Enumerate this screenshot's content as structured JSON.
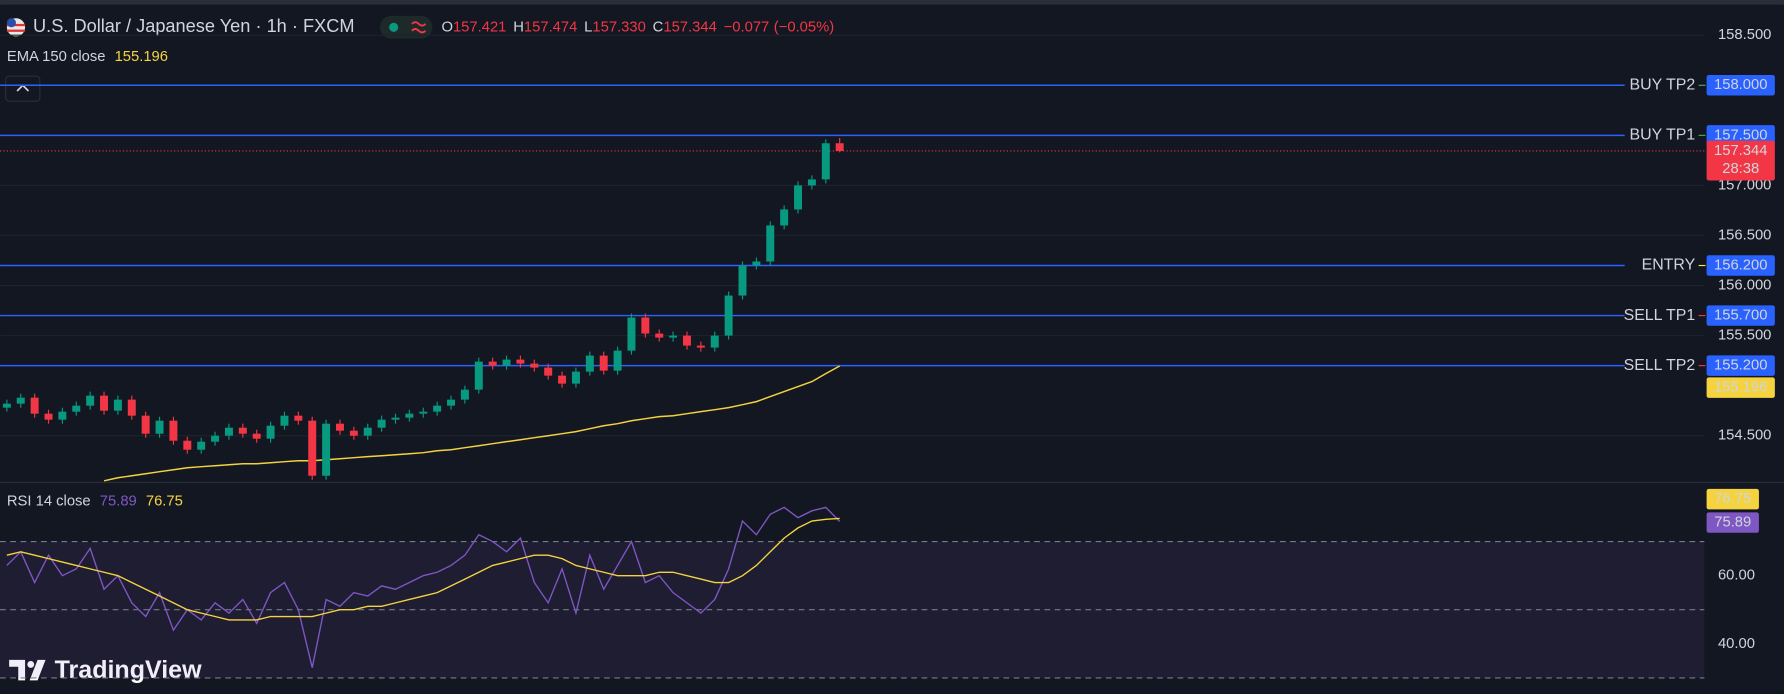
{
  "chart_data": [
    {
      "type": "candlestick",
      "title": "U.S. Dollar / Japanese Yen · 1h · FXCM",
      "ohlc_legend": [
        {
          "letter": "O",
          "value": 157.421,
          "label": "157.421"
        },
        {
          "letter": "H",
          "value": 157.474,
          "label": "157.474"
        },
        {
          "letter": "L",
          "value": 157.33,
          "label": "157.330"
        },
        {
          "letter": "C",
          "value": 157.344,
          "label": "157.344"
        }
      ],
      "change": {
        "value": -0.077,
        "label": "−0.077"
      },
      "change_percent": {
        "value": -0.05,
        "label": "(−0.05%)"
      },
      "open": [
        154.78,
        154.82,
        154.88,
        154.72,
        154.66,
        154.74,
        154.8,
        154.9,
        154.75,
        154.86,
        154.7,
        154.52,
        154.65,
        154.45,
        154.36,
        154.44,
        154.5,
        154.58,
        154.52,
        154.47,
        154.6,
        154.7,
        154.65,
        154.1,
        154.62,
        154.55,
        154.5,
        154.58,
        154.66,
        154.68,
        154.72,
        154.74,
        154.8,
        154.86,
        154.96,
        155.24,
        155.2,
        155.26,
        155.22,
        155.18,
        155.1,
        155.02,
        155.14,
        155.3,
        155.15,
        155.35,
        155.68,
        155.52,
        155.48,
        155.5,
        155.4,
        155.38,
        155.5,
        155.9,
        156.2,
        156.24,
        156.6,
        156.76,
        157.0,
        157.06,
        157.421
      ],
      "high": [
        154.86,
        154.92,
        154.92,
        154.76,
        154.78,
        154.84,
        154.94,
        154.94,
        154.9,
        154.9,
        154.74,
        154.69,
        154.69,
        154.49,
        154.48,
        154.54,
        154.62,
        154.62,
        154.56,
        154.64,
        154.74,
        154.74,
        154.69,
        154.66,
        154.66,
        154.59,
        154.62,
        154.7,
        154.72,
        154.76,
        154.78,
        154.84,
        154.9,
        155.0,
        155.28,
        155.28,
        155.3,
        155.3,
        155.26,
        155.22,
        155.14,
        155.18,
        155.34,
        155.34,
        155.39,
        155.72,
        155.72,
        155.56,
        155.54,
        155.54,
        155.44,
        155.54,
        155.94,
        156.24,
        156.28,
        156.64,
        156.8,
        157.04,
        157.1,
        157.46,
        157.474
      ],
      "low": [
        154.74,
        154.78,
        154.68,
        154.62,
        154.62,
        154.7,
        154.76,
        154.71,
        154.71,
        154.66,
        154.48,
        154.48,
        154.41,
        154.32,
        154.32,
        154.4,
        154.46,
        154.48,
        154.43,
        154.43,
        154.56,
        154.61,
        154.06,
        154.06,
        154.51,
        154.46,
        154.46,
        154.54,
        154.62,
        154.64,
        154.68,
        154.7,
        154.76,
        154.82,
        154.92,
        155.16,
        155.16,
        155.18,
        155.14,
        155.06,
        154.98,
        154.98,
        155.1,
        155.11,
        155.11,
        155.31,
        155.48,
        155.44,
        155.44,
        155.36,
        155.34,
        155.34,
        155.46,
        155.86,
        156.16,
        156.2,
        156.56,
        156.72,
        156.96,
        157.02,
        157.33
      ],
      "close": [
        154.82,
        154.88,
        154.72,
        154.66,
        154.74,
        154.8,
        154.9,
        154.75,
        154.86,
        154.7,
        154.52,
        154.65,
        154.45,
        154.36,
        154.44,
        154.5,
        154.58,
        154.52,
        154.47,
        154.6,
        154.7,
        154.65,
        154.1,
        154.62,
        154.55,
        154.5,
        154.58,
        154.66,
        154.68,
        154.72,
        154.74,
        154.8,
        154.86,
        154.96,
        155.24,
        155.2,
        155.26,
        155.22,
        155.18,
        155.1,
        155.02,
        155.14,
        155.3,
        155.15,
        155.35,
        155.68,
        155.52,
        155.48,
        155.5,
        155.4,
        155.38,
        155.5,
        155.9,
        156.2,
        156.24,
        156.6,
        156.76,
        157.0,
        157.06,
        157.421,
        157.344
      ],
      "up_color": "#089981",
      "down_color": "#f23645",
      "overlays": [
        {
          "name": "EMA 150 close",
          "color": "#f5d33f",
          "values": [
            null,
            null,
            null,
            null,
            null,
            null,
            null,
            154.05,
            154.08,
            154.1,
            154.12,
            154.14,
            154.16,
            154.18,
            154.19,
            154.2,
            154.21,
            154.22,
            154.22,
            154.23,
            154.24,
            154.25,
            154.25,
            154.26,
            154.27,
            154.28,
            154.29,
            154.3,
            154.31,
            154.32,
            154.33,
            154.35,
            154.36,
            154.38,
            154.4,
            154.42,
            154.44,
            154.46,
            154.48,
            154.5,
            154.52,
            154.54,
            154.57,
            154.6,
            154.62,
            154.65,
            154.67,
            154.69,
            154.7,
            154.72,
            154.74,
            154.76,
            154.78,
            154.81,
            154.84,
            154.89,
            154.94,
            154.99,
            155.04,
            155.12,
            155.196
          ]
        }
      ],
      "last_price": {
        "value": 157.344,
        "label": "157.344"
      },
      "countdown": "28:38",
      "levels": [
        {
          "name": "BUY TP2",
          "value": 158,
          "label": "158.000",
          "color": "#4caf50"
        },
        {
          "name": "BUY TP1",
          "value": 157.5,
          "label": "157.500",
          "color": "#4caf50"
        },
        {
          "name": "ENTRY",
          "value": 156.2,
          "label": "156.200",
          "color": "#ffeb3b"
        },
        {
          "name": "SELL TP1",
          "value": 155.7,
          "label": "155.700",
          "color": "#f23645"
        },
        {
          "name": "SELL TP2",
          "value": 155.2,
          "label": "155.200",
          "color": "#f23645"
        }
      ],
      "level_color": "#2962ff",
      "ylim": [
        154.045,
        158.852
      ],
      "yticks": [
        {
          "value": 158.5,
          "label": "158.500"
        },
        {
          "value": 157,
          "label": "157.000"
        },
        {
          "value": 156.5,
          "label": "156.500"
        },
        {
          "value": 156,
          "label": "156.000"
        },
        {
          "value": 155.5,
          "label": "155.500"
        },
        {
          "value": 154.5,
          "label": "154.500"
        }
      ],
      "grid": true
    },
    {
      "type": "line",
      "title": "RSI 14 close",
      "series": [
        {
          "color": "#7e57c2",
          "values": [
            63,
            67,
            58,
            66,
            60,
            62,
            68,
            56,
            60,
            52,
            48,
            55,
            44,
            50,
            47,
            52,
            49,
            53,
            46,
            55,
            58,
            50,
            33,
            53,
            51,
            55,
            54,
            57,
            56,
            58,
            60,
            61,
            63,
            66,
            72,
            70,
            67,
            71,
            58,
            52,
            62,
            49,
            66,
            56,
            63,
            70,
            58,
            60,
            55,
            52,
            49,
            53,
            62,
            76,
            72,
            78,
            80,
            77,
            79,
            80,
            75.89
          ]
        },
        {
          "color": "#f5d33f",
          "values": [
            66,
            67,
            66,
            65,
            64,
            63,
            62,
            61,
            60,
            58,
            56,
            54,
            52,
            50,
            49,
            48,
            47,
            47,
            47,
            48,
            48,
            48,
            48,
            49,
            50,
            50,
            51,
            51,
            52,
            53,
            54,
            55,
            57,
            59,
            61,
            63,
            64,
            65,
            66,
            66,
            65,
            63,
            62,
            61,
            60,
            60,
            60,
            61,
            61,
            60,
            59,
            58,
            58,
            60,
            63,
            67,
            71,
            74,
            76,
            76.5,
            76.75
          ]
        }
      ],
      "band_lines": [
        70,
        50,
        30
      ],
      "ylim": [
        25.3,
        87
      ],
      "yticks": [
        {
          "value": 60,
          "label": "60.00"
        },
        {
          "value": 40,
          "label": "40.00"
        }
      ]
    }
  ],
  "watermark": "TradingView"
}
